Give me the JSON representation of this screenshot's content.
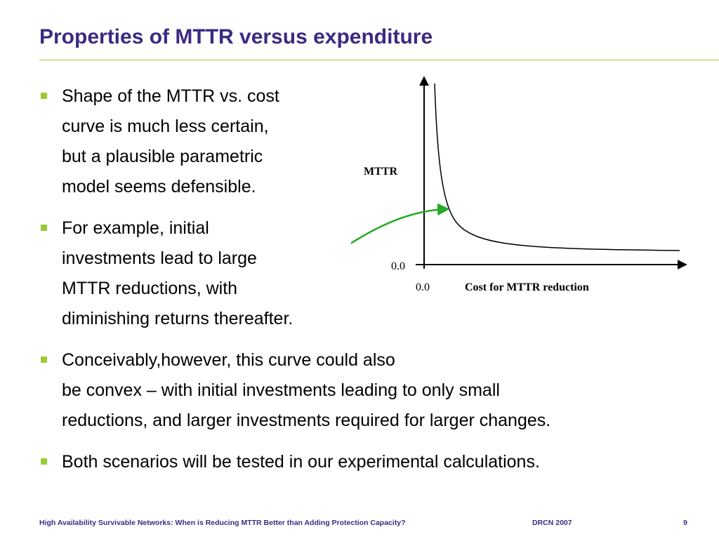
{
  "slide": {
    "title": "Properties of MTTR versus expenditure"
  },
  "bullets": [
    {
      "lines": [
        "Shape of the MTTR vs. cost",
        "curve is much less certain,",
        "but a plausible parametric",
        "model seems defensible."
      ]
    },
    {
      "lines": [
        "For example, initial",
        "investments lead to large",
        "MTTR reductions, with",
        "diminishing returns thereafter."
      ]
    },
    {
      "lines": [
        "Conceivably,however, this curve could also",
        "be convex – with initial investments leading to only small",
        "reductions, and larger investments required for larger changes."
      ]
    },
    {
      "lines": [
        "Both scenarios will be tested in our experimental calculations."
      ]
    }
  ],
  "chart_data": {
    "type": "line",
    "ylabel": "MTTR",
    "xlabel": "Cost for MTTR reduction",
    "x_origin_label": "0.0",
    "y_origin_label": "0.0",
    "curve_description": "decreasing convex curve with diminishing returns",
    "colors": {
      "curve": "#000000",
      "axes": "#000000",
      "arrow": "#22aa22"
    }
  },
  "footer": {
    "left": "High Availability Survivable Networks: When is Reducing MTTR Better than Adding Protection Capacity?",
    "center": "DRCN 2007",
    "page": "9"
  }
}
